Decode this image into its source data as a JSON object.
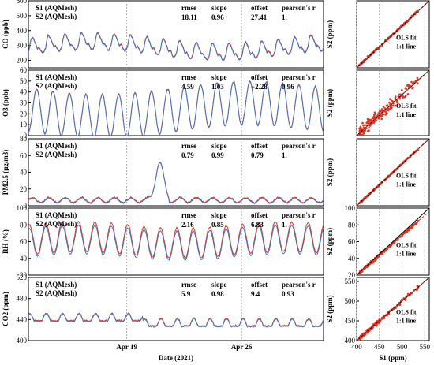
{
  "colors": {
    "s1": "#e8321e",
    "s2": "#3a78c8",
    "fit": "#c0392b",
    "identity": "#000000"
  },
  "legend": {
    "s1": "S1 (AQMesh)",
    "s2": "S2 (AQMesh)"
  },
  "stats_headers": [
    "rmse",
    "slope",
    "offset",
    "pearson's r"
  ],
  "time_axis": {
    "xlabel": "Date (2021)",
    "ticks": [
      "Apr 19",
      "Apr 26"
    ],
    "tick_days": [
      6,
      13
    ],
    "days_range": [
      0,
      18
    ]
  },
  "scatter_axis": {
    "xlabel": "S1 (ppm)",
    "xticks": [
      400,
      450,
      500,
      550
    ],
    "xlim": [
      400,
      560
    ],
    "fit_label": "OLS fit",
    "line_label": "1:1 line"
  },
  "chart_data": [
    {
      "type": "line",
      "ylabel": "CO (ppb)",
      "ylim": [
        150,
        600
      ],
      "yticks": [
        200,
        300,
        400,
        500,
        600
      ],
      "series": [
        {
          "name": "S1 (AQMesh)"
        },
        {
          "name": "S2 (AQMesh)"
        }
      ],
      "stats": {
        "rmse": "18.11",
        "slope": "0.96",
        "offset": "27.41",
        "pearson": "1."
      },
      "scatter": {
        "ylabel": "S2 (ppm)",
        "yticks": [],
        "ylim": [
          400,
          560
        ],
        "spread": 3,
        "slope": 1.0
      }
    },
    {
      "type": "line",
      "ylabel": "O3 (ppb)",
      "ylim": [
        0,
        60
      ],
      "yticks": [
        0,
        10,
        20,
        30,
        40,
        50,
        60
      ],
      "series": [
        {
          "name": "S1 (AQMesh)"
        },
        {
          "name": "S2 (AQMesh)"
        }
      ],
      "stats": {
        "rmse": "4.59",
        "slope": "1.03",
        "offset": "−2.28",
        "pearson": "0.96"
      },
      "scatter": {
        "ylabel": "S2 (ppm)",
        "yticks": [],
        "ylim": [
          400,
          560
        ],
        "spread": 18,
        "slope": 1.0
      }
    },
    {
      "type": "line",
      "ylabel": "PM2.5 (μg/m3)",
      "ylim": [
        0,
        80
      ],
      "yticks": [
        0,
        20,
        40,
        60,
        80
      ],
      "series": [
        {
          "name": "S1 (AQMesh)"
        },
        {
          "name": "S2 (AQMesh)"
        }
      ],
      "stats": {
        "rmse": "0.79",
        "slope": "0.99",
        "offset": "0.79",
        "pearson": "1."
      },
      "scatter": {
        "ylabel": "S2 (ppm)",
        "yticks": [],
        "ylim": [
          400,
          560
        ],
        "spread": 2,
        "slope": 1.0
      }
    },
    {
      "type": "line",
      "ylabel": "RH (%)",
      "ylim": [
        20,
        100
      ],
      "yticks": [
        20,
        40,
        60,
        80,
        100
      ],
      "series": [
        {
          "name": "S1 (AQMesh)"
        },
        {
          "name": "S2 (AQMesh)"
        }
      ],
      "stats": {
        "rmse": "2.16",
        "slope": "0.85",
        "offset": "6.83",
        "pearson": "1."
      },
      "scatter": {
        "ylabel": "S2 (ppm)",
        "yticks": [
          20,
          40,
          60,
          80,
          100
        ],
        "ylim": [
          20,
          100
        ],
        "spread": 2,
        "slope": 0.95
      }
    },
    {
      "type": "line",
      "ylabel": "CO2 (ppm)",
      "ylim": [
        400,
        520
      ],
      "yticks": [
        400,
        440,
        480,
        520
      ],
      "series": [
        {
          "name": "S1 (AQMesh)"
        },
        {
          "name": "S2 (AQMesh)"
        }
      ],
      "stats": {
        "rmse": "5.9",
        "slope": "0.98",
        "offset": "9.4",
        "pearson": "0.93"
      },
      "scatter": {
        "ylabel": "S2 (ppm)",
        "yticks": [
          400,
          450,
          500,
          550
        ],
        "ylim": [
          400,
          560
        ],
        "spread": 6,
        "slope": 1.0
      }
    }
  ]
}
